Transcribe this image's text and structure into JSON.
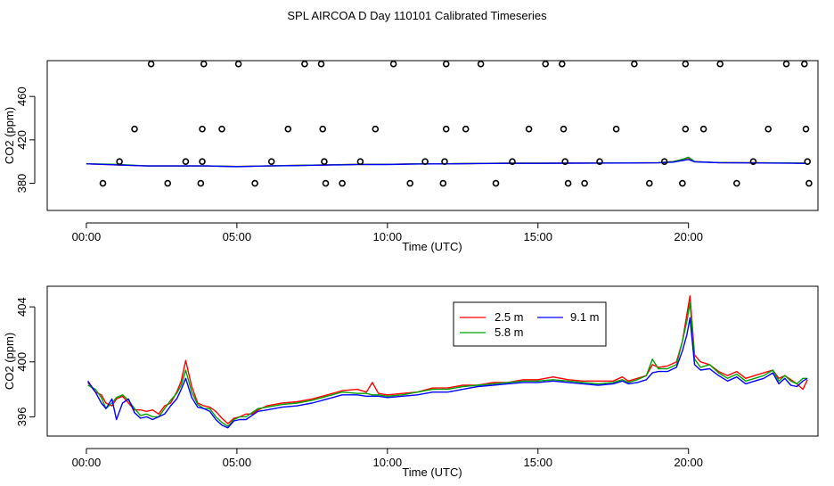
{
  "page_title": "SPL AIRCOA D  Day 110101  Calibrated Timeseries",
  "chart_data": [
    {
      "type": "line+scatter",
      "title": "",
      "xlabel": "Time (UTC)",
      "ylabel": "CO2 (ppm)",
      "xlim": [
        -1.3,
        24.3
      ],
      "ylim": [
        355,
        493
      ],
      "x_ticks": [
        0,
        5,
        10,
        15,
        20
      ],
      "x_tick_labels": [
        "00:00",
        "05:00",
        "10:00",
        "15:00",
        "20:00"
      ],
      "y_ticks": [
        380,
        420,
        460
      ],
      "y_tick_labels": [
        "380",
        "420",
        "460"
      ],
      "grid": false,
      "scatter_points": [
        [
          2.15,
          490
        ],
        [
          3.9,
          490
        ],
        [
          5.05,
          490
        ],
        [
          7.25,
          490
        ],
        [
          7.8,
          490
        ],
        [
          10.2,
          490
        ],
        [
          11.95,
          490
        ],
        [
          13.1,
          490
        ],
        [
          15.25,
          490
        ],
        [
          15.8,
          490
        ],
        [
          18.2,
          490
        ],
        [
          19.9,
          490
        ],
        [
          21.05,
          490
        ],
        [
          23.25,
          490
        ],
        [
          23.85,
          490
        ],
        [
          1.6,
          430
        ],
        [
          3.85,
          430
        ],
        [
          4.5,
          430
        ],
        [
          6.7,
          430
        ],
        [
          7.85,
          430
        ],
        [
          9.6,
          430
        ],
        [
          11.95,
          430
        ],
        [
          12.6,
          430
        ],
        [
          14.7,
          430
        ],
        [
          15.85,
          430
        ],
        [
          17.6,
          430
        ],
        [
          19.9,
          430
        ],
        [
          20.5,
          430
        ],
        [
          22.65,
          430
        ],
        [
          23.9,
          430
        ],
        [
          1.1,
          400
        ],
        [
          3.3,
          400
        ],
        [
          3.85,
          400
        ],
        [
          6.15,
          400
        ],
        [
          7.9,
          400
        ],
        [
          9.1,
          400
        ],
        [
          11.25,
          400
        ],
        [
          11.9,
          400
        ],
        [
          14.15,
          400
        ],
        [
          15.9,
          400
        ],
        [
          17.05,
          400
        ],
        [
          19.2,
          400
        ],
        [
          22.15,
          400
        ],
        [
          23.95,
          400
        ],
        [
          0.55,
          380
        ],
        [
          2.7,
          380
        ],
        [
          3.8,
          380
        ],
        [
          5.6,
          380
        ],
        [
          7.95,
          380
        ],
        [
          8.5,
          380
        ],
        [
          10.75,
          380
        ],
        [
          11.85,
          380
        ],
        [
          13.6,
          380
        ],
        [
          16.0,
          380
        ],
        [
          16.55,
          380
        ],
        [
          18.7,
          380
        ],
        [
          19.8,
          380
        ],
        [
          21.6,
          380
        ],
        [
          24.0,
          380
        ]
      ],
      "series": [
        {
          "name": "2.5 m",
          "color": "#ff0000",
          "x": [
            0,
            1,
            2,
            3,
            4,
            5,
            6,
            7,
            8,
            9,
            10,
            11,
            12,
            13,
            14,
            15,
            16,
            17,
            18,
            19,
            19.5,
            19.8,
            20,
            20.2,
            21,
            22,
            23,
            23.9
          ],
          "y": [
            398,
            397,
            396,
            396,
            396,
            395.5,
            396,
            396.5,
            397,
            397.5,
            397.5,
            398,
            398,
            398.3,
            398.5,
            398.5,
            398.6,
            398.7,
            398.8,
            399,
            400,
            402,
            403.5,
            400,
            399,
            399,
            398.8,
            398.5
          ]
        },
        {
          "name": "5.8 m",
          "color": "#00a000",
          "x": [
            0,
            1,
            2,
            3,
            4,
            5,
            6,
            7,
            8,
            9,
            10,
            11,
            12,
            13,
            14,
            15,
            16,
            17,
            18,
            19,
            19.5,
            19.8,
            20,
            20.2,
            21,
            22,
            23,
            23.9
          ],
          "y": [
            398,
            397.5,
            396,
            396,
            396,
            395.5,
            396,
            396.5,
            397,
            397.5,
            397.5,
            398,
            398,
            398.3,
            398.5,
            398.5,
            398.6,
            398.7,
            398.8,
            399,
            400,
            402,
            404,
            400,
            399,
            399,
            398.8,
            398.5
          ]
        },
        {
          "name": "9.1 m",
          "color": "#0000ff",
          "x": [
            0,
            1,
            2,
            3,
            4,
            5,
            6,
            7,
            8,
            9,
            10,
            11,
            12,
            13,
            14,
            15,
            16,
            17,
            18,
            19,
            19.5,
            19.8,
            20,
            20.2,
            21,
            22,
            23,
            23.9
          ],
          "y": [
            398,
            397,
            396,
            396,
            396,
            395.3,
            396,
            396.3,
            396.8,
            397.2,
            397.3,
            397.8,
            398,
            398.2,
            398.4,
            398.4,
            398.5,
            398.6,
            398.7,
            398.9,
            399.5,
            401,
            402,
            399.8,
            399,
            398.8,
            398.6,
            398.3
          ]
        }
      ]
    },
    {
      "type": "line",
      "title": "",
      "xlabel": "Time (UTC)",
      "ylabel": "CO2 (ppm)",
      "xlim": [
        -1.3,
        24.3
      ],
      "ylim": [
        394.6,
        405.5
      ],
      "x_ticks": [
        0,
        5,
        10,
        15,
        20
      ],
      "x_tick_labels": [
        "00:00",
        "05:00",
        "10:00",
        "15:00",
        "20:00"
      ],
      "y_ticks": [
        396,
        400,
        404
      ],
      "y_tick_labels": [
        "396",
        "400",
        "404"
      ],
      "grid": false,
      "legend": {
        "placement": "top-center",
        "entries": [
          "2.5 m",
          "9.1 m",
          "5.8 m"
        ]
      },
      "series": [
        {
          "name": "2.5 m",
          "color": "#ff0000",
          "x": [
            0.05,
            0.3,
            0.5,
            0.65,
            0.85,
            1.0,
            1.2,
            1.4,
            1.6,
            1.8,
            2.0,
            2.2,
            2.4,
            2.6,
            2.8,
            3.0,
            3.15,
            3.3,
            3.5,
            3.7,
            3.9,
            4.1,
            4.3,
            4.5,
            4.7,
            4.9,
            5.1,
            5.3,
            5.5,
            5.7,
            6.0,
            6.5,
            7.0,
            7.5,
            8.0,
            8.5,
            9.0,
            9.3,
            9.5,
            9.7,
            10.0,
            10.5,
            11.0,
            11.5,
            12.0,
            12.5,
            13.0,
            13.5,
            14.0,
            14.5,
            15.0,
            15.5,
            16.0,
            16.5,
            17.0,
            17.5,
            17.8,
            18.0,
            18.3,
            18.6,
            18.8,
            19.0,
            19.3,
            19.6,
            19.8,
            19.95,
            20.05,
            20.2,
            20.4,
            20.7,
            21.0,
            21.3,
            21.6,
            21.9,
            22.2,
            22.5,
            22.8,
            23.0,
            23.2,
            23.4,
            23.6,
            23.8,
            23.95
          ],
          "y": [
            398.5,
            397.8,
            397.6,
            397,
            396.8,
            397.3,
            397.5,
            397.0,
            396.5,
            396.5,
            396.4,
            396.5,
            396.2,
            396.8,
            397.0,
            397.8,
            398.6,
            400.1,
            398.2,
            397.0,
            396.8,
            396.7,
            396.4,
            395.9,
            395.5,
            395.9,
            396.0,
            396.2,
            396.2,
            396.5,
            396.8,
            397.0,
            397.1,
            397.3,
            397.6,
            397.9,
            398.0,
            397.8,
            398.5,
            397.7,
            397.6,
            397.7,
            397.8,
            398.1,
            398.1,
            398.3,
            398.3,
            398.5,
            398.5,
            398.7,
            398.7,
            398.9,
            398.7,
            398.6,
            398.6,
            398.6,
            398.9,
            398.6,
            398.8,
            399.0,
            399.8,
            399.6,
            399.7,
            400.0,
            401.5,
            403.5,
            404.8,
            400.5,
            400.0,
            399.8,
            399.3,
            399.0,
            399.3,
            398.8,
            399.0,
            399.2,
            399.4,
            398.8,
            399.0,
            398.7,
            398.4,
            398.0,
            398.7
          ]
        },
        {
          "name": "5.8 m",
          "color": "#00a000",
          "x": [
            0.05,
            0.3,
            0.5,
            0.65,
            0.85,
            1.0,
            1.2,
            1.4,
            1.6,
            1.8,
            2.0,
            2.2,
            2.4,
            2.6,
            2.8,
            3.0,
            3.15,
            3.3,
            3.5,
            3.7,
            3.9,
            4.1,
            4.3,
            4.5,
            4.7,
            4.9,
            5.1,
            5.3,
            5.5,
            5.7,
            6.0,
            6.5,
            7.0,
            7.5,
            8.0,
            8.5,
            9.0,
            9.3,
            9.5,
            9.7,
            10.0,
            10.5,
            11.0,
            11.5,
            12.0,
            12.5,
            13.0,
            13.5,
            14.0,
            14.5,
            15.0,
            15.5,
            16.0,
            16.5,
            17.0,
            17.5,
            17.8,
            18.0,
            18.3,
            18.6,
            18.8,
            19.0,
            19.3,
            19.6,
            19.8,
            19.95,
            20.05,
            20.2,
            20.4,
            20.7,
            21.0,
            21.3,
            21.6,
            21.9,
            22.2,
            22.5,
            22.8,
            23.0,
            23.2,
            23.4,
            23.6,
            23.8,
            23.95
          ],
          "y": [
            398.3,
            398.0,
            397.4,
            396.6,
            397.0,
            397.4,
            397.6,
            397.2,
            396.6,
            396.1,
            396.2,
            396.0,
            396.0,
            396.6,
            397.2,
            397.7,
            398.3,
            399.4,
            397.8,
            396.9,
            396.6,
            396.6,
            396.0,
            395.6,
            395.3,
            395.8,
            396.0,
            396.0,
            396.3,
            396.6,
            396.7,
            396.9,
            397.0,
            397.2,
            397.5,
            397.8,
            397.7,
            397.7,
            397.6,
            397.6,
            397.5,
            397.6,
            397.8,
            398.0,
            398.0,
            398.2,
            398.3,
            398.4,
            398.5,
            398.6,
            398.6,
            398.7,
            398.6,
            398.5,
            398.4,
            398.5,
            398.7,
            398.5,
            398.7,
            399.0,
            400.2,
            399.5,
            399.5,
            399.8,
            401.5,
            403.0,
            404.3,
            400.2,
            399.6,
            399.8,
            399.2,
            398.8,
            399.1,
            398.6,
            398.8,
            399.0,
            399.4,
            398.6,
            399.0,
            398.6,
            398.4,
            398.8,
            398.8
          ]
        },
        {
          "name": "9.1 m",
          "color": "#0000ff",
          "x": [
            0.05,
            0.3,
            0.5,
            0.65,
            0.85,
            1.0,
            1.2,
            1.4,
            1.6,
            1.8,
            2.0,
            2.2,
            2.4,
            2.6,
            2.8,
            3.0,
            3.15,
            3.3,
            3.5,
            3.7,
            3.9,
            4.1,
            4.3,
            4.5,
            4.7,
            4.9,
            5.1,
            5.3,
            5.5,
            5.7,
            6.0,
            6.5,
            7.0,
            7.5,
            8.0,
            8.5,
            9.0,
            9.3,
            9.5,
            9.7,
            10.0,
            10.5,
            11.0,
            11.5,
            12.0,
            12.5,
            13.0,
            13.5,
            14.0,
            14.5,
            15.0,
            15.5,
            16.0,
            16.5,
            17.0,
            17.5,
            17.8,
            18.0,
            18.3,
            18.6,
            18.8,
            19.0,
            19.3,
            19.6,
            19.8,
            19.95,
            20.05,
            20.2,
            20.4,
            20.7,
            21.0,
            21.3,
            21.6,
            21.9,
            22.2,
            22.5,
            22.8,
            23.0,
            23.2,
            23.4,
            23.6,
            23.8,
            23.95
          ],
          "y": [
            398.6,
            397.8,
            397.0,
            396.6,
            397.3,
            395.8,
            397.0,
            397.3,
            396.3,
            395.9,
            396.0,
            395.8,
            396.0,
            396.2,
            396.8,
            397.3,
            398.0,
            398.8,
            397.4,
            396.7,
            396.6,
            396.4,
            395.8,
            395.4,
            395.2,
            395.7,
            395.8,
            395.8,
            396.1,
            396.4,
            396.5,
            396.7,
            396.8,
            397.0,
            397.3,
            397.6,
            397.6,
            397.5,
            397.5,
            397.5,
            397.4,
            397.5,
            397.6,
            397.8,
            397.8,
            398.0,
            398.2,
            398.3,
            398.4,
            398.5,
            398.5,
            398.6,
            398.5,
            398.4,
            398.3,
            398.4,
            398.6,
            398.4,
            398.5,
            398.7,
            399.2,
            399.3,
            399.3,
            399.6,
            400.8,
            402.0,
            403.2,
            399.8,
            399.4,
            399.5,
            399.0,
            398.6,
            398.9,
            398.4,
            398.6,
            398.8,
            399.2,
            398.4,
            398.8,
            398.3,
            398.2,
            398.6,
            398.8
          ]
        }
      ]
    }
  ]
}
